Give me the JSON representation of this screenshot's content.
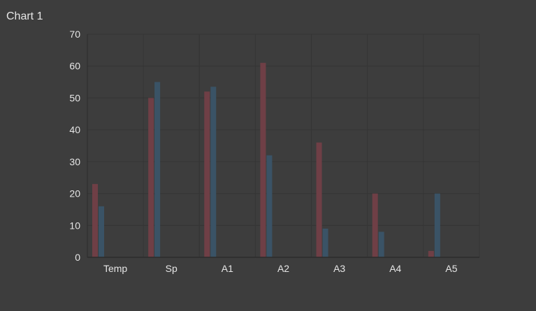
{
  "title": "Chart 1",
  "colors": {
    "background": "#3d3d3d",
    "grid": "#353535",
    "axis": "#2c2c2c",
    "text": "#e6e6e6",
    "series_1": "#6f3f46",
    "series_2": "#3a5366"
  },
  "chart_data": {
    "type": "bar",
    "title": "Chart 1",
    "xlabel": "",
    "ylabel": "",
    "categories": [
      "Temp",
      "Sp",
      "A1",
      "A2",
      "A3",
      "A4",
      "A5"
    ],
    "series": [
      {
        "values": [
          23,
          50,
          52,
          61,
          36,
          20,
          2
        ]
      },
      {
        "values": [
          16,
          55,
          53.5,
          32,
          9,
          8,
          20
        ]
      }
    ],
    "ylim": [
      0,
      70
    ],
    "yticks": [
      0,
      10,
      20,
      30,
      40,
      50,
      60,
      70
    ],
    "grid": true,
    "legend": "none"
  }
}
